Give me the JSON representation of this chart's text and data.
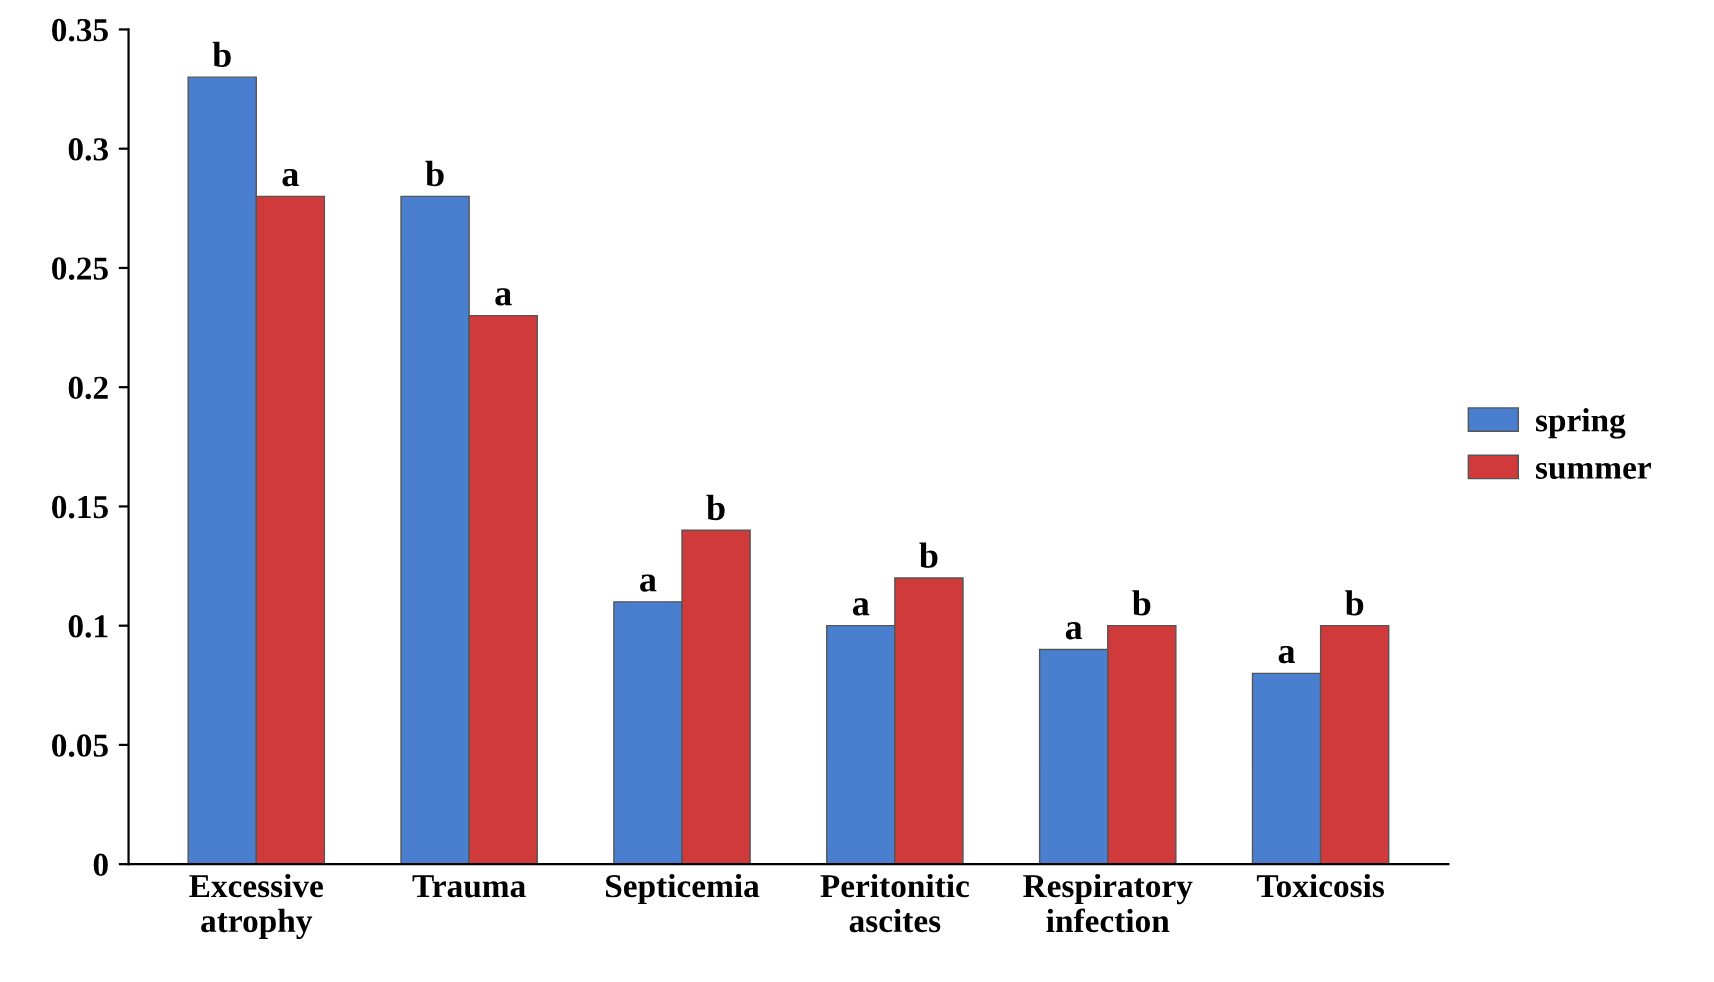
{
  "chart_data": {
    "type": "bar",
    "categories": [
      "Excessive\natrophy",
      "Trauma",
      "Septicemia",
      "Peritonitic\nascites",
      "Respiratory\ninfection",
      "Toxicosis"
    ],
    "series": [
      {
        "name": "spring",
        "color": "#4a7fd0",
        "values": [
          0.33,
          0.28,
          0.11,
          0.1,
          0.09,
          0.08
        ],
        "value_labels": [
          "b",
          "b",
          "a",
          "a",
          "a",
          "a"
        ]
      },
      {
        "name": "summer",
        "color": "#d03a3a",
        "values": [
          0.28,
          0.23,
          0.14,
          0.12,
          0.1,
          0.1
        ],
        "value_labels": [
          "a",
          "a",
          "b",
          "b",
          "b",
          "b"
        ]
      }
    ],
    "ylim": [
      0,
      0.35
    ],
    "yticks": [
      0,
      0.05,
      0.1,
      0.15,
      0.2,
      0.25,
      0.3,
      0.35
    ],
    "grid": false,
    "legend": "right"
  }
}
